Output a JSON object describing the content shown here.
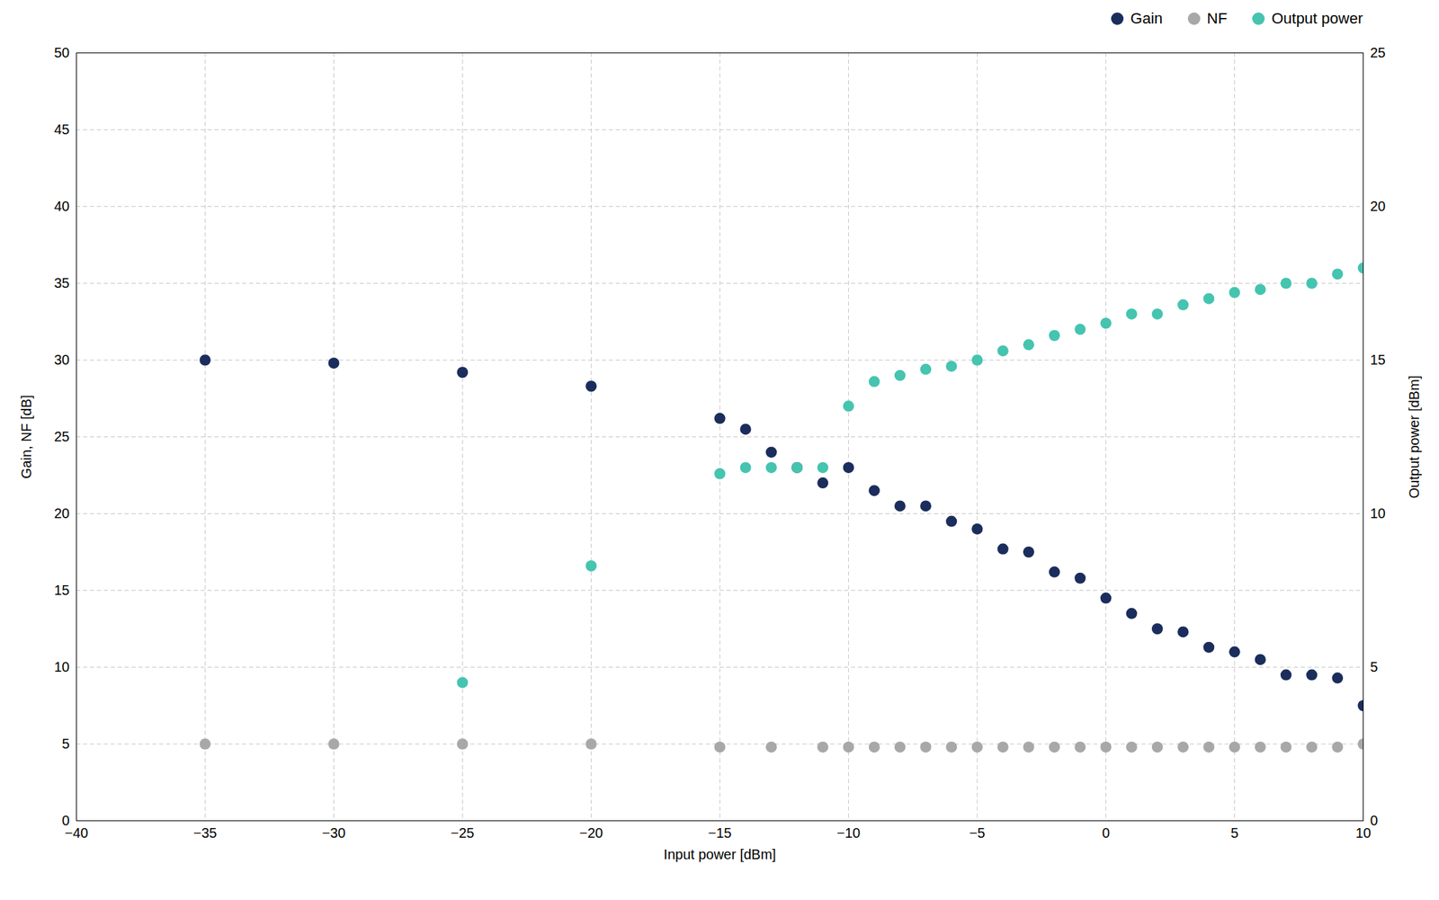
{
  "chart_data": {
    "type": "scatter",
    "xlabel": "Input power [dBm]",
    "ylabel": "Gain, NF [dB]",
    "y2label": "Output power [dBm]",
    "xlim": [
      -40,
      10
    ],
    "ylim": [
      0,
      50
    ],
    "y2lim": [
      0,
      25
    ],
    "xticks": [
      -40,
      -35,
      -30,
      -25,
      -20,
      -15,
      -10,
      -5,
      0,
      5,
      10
    ],
    "yticks": [
      0,
      5,
      10,
      15,
      20,
      25,
      30,
      35,
      40,
      45,
      50
    ],
    "y2ticks": [
      0,
      5,
      10,
      15,
      20,
      25
    ],
    "grid": true,
    "legend": "upper right",
    "series": [
      {
        "name": "Gain",
        "color": "#1b2d5c",
        "axis": "y",
        "x": [
          -35,
          -30,
          -25,
          -20,
          -15,
          -14,
          -13,
          -12,
          -11,
          -10,
          -9,
          -8,
          -7,
          -6,
          -5,
          -4,
          -3,
          -2,
          -1,
          0,
          1,
          2,
          3,
          4,
          5,
          6,
          7,
          8,
          9,
          10
        ],
        "values": [
          30.0,
          29.8,
          29.2,
          28.3,
          26.2,
          25.5,
          24.0,
          23.0,
          22.0,
          23.0,
          21.5,
          20.5,
          20.5,
          19.5,
          19.0,
          17.7,
          17.5,
          16.2,
          15.8,
          14.5,
          13.5,
          12.5,
          12.3,
          11.3,
          11.0,
          10.5,
          9.5,
          9.5,
          9.3,
          7.5
        ]
      },
      {
        "name": "NF",
        "color": "#a8a8a8",
        "axis": "y",
        "x": [
          -35,
          -30,
          -25,
          -20,
          -15,
          -13,
          -11,
          -10,
          -9,
          -8,
          -7,
          -6,
          -5,
          -4,
          -3,
          -2,
          -1,
          0,
          1,
          2,
          3,
          4,
          5,
          6,
          7,
          8,
          9,
          10
        ],
        "values": [
          5.0,
          5.0,
          5.0,
          5.0,
          4.8,
          4.8,
          4.8,
          4.8,
          4.8,
          4.8,
          4.8,
          4.8,
          4.8,
          4.8,
          4.8,
          4.8,
          4.8,
          4.8,
          4.8,
          4.8,
          4.8,
          4.8,
          4.8,
          4.8,
          4.8,
          4.8,
          4.8,
          5.0
        ]
      },
      {
        "name": "Output power",
        "color": "#45c4b0",
        "axis": "y2",
        "x": [
          -25,
          -20,
          -15,
          -14,
          -13,
          -12,
          -11,
          -10,
          -9,
          -8,
          -7,
          -6,
          -5,
          -4,
          -3,
          -2,
          -1,
          0,
          1,
          2,
          3,
          4,
          5,
          6,
          7,
          8,
          9,
          10
        ],
        "values": [
          4.5,
          8.3,
          11.3,
          11.5,
          11.5,
          11.5,
          11.5,
          13.5,
          14.3,
          14.5,
          14.7,
          14.8,
          15.0,
          15.3,
          15.5,
          15.8,
          16.0,
          16.2,
          16.5,
          16.5,
          16.8,
          17.0,
          17.2,
          17.3,
          17.5,
          17.5,
          17.8,
          18.0
        ]
      }
    ]
  }
}
